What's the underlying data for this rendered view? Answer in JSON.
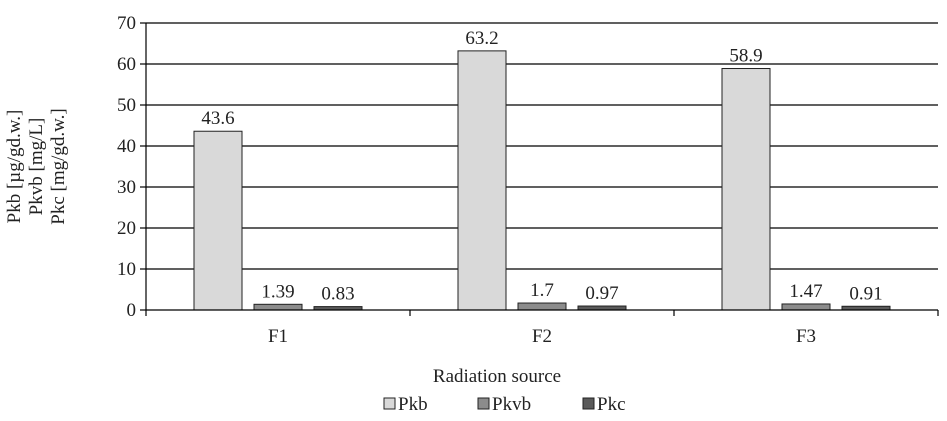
{
  "chart_data": {
    "type": "bar",
    "categories": [
      "F1",
      "F2",
      "F3"
    ],
    "series": [
      {
        "name": "Pkb",
        "values": [
          43.6,
          63.2,
          58.9
        ],
        "labels": [
          "43.6",
          "63.2",
          "58.9"
        ],
        "color": "#d9d9d9"
      },
      {
        "name": "Pkvb",
        "values": [
          1.39,
          1.7,
          1.47
        ],
        "labels": [
          "1.39",
          "1.7",
          "1.47"
        ],
        "color": "#8c8c8c"
      },
      {
        "name": "Pkc",
        "values": [
          0.83,
          0.97,
          0.91
        ],
        "labels": [
          "0.83",
          "0.97",
          "0.91"
        ],
        "color": "#5a5a5a"
      }
    ],
    "xlabel": "Radiation source",
    "ylabel": [
      "Pkb [µg/gd.w.]",
      "Pkvb [mg/L]",
      "Pkc [mg/gd.w.]"
    ],
    "ylim": [
      0,
      70
    ],
    "yticks": [
      0,
      10,
      20,
      30,
      40,
      50,
      60,
      70
    ],
    "grid": true,
    "legend_position": "bottom"
  }
}
